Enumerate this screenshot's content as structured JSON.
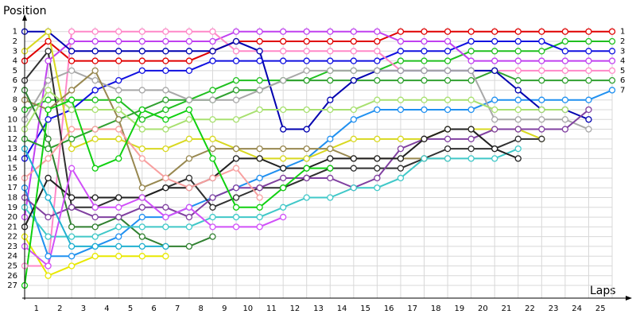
{
  "chart_data": {
    "type": "line",
    "y_label": "Position",
    "x_label": "Laps",
    "x": [
      0,
      1,
      2,
      3,
      4,
      5,
      6,
      7,
      8,
      9,
      10,
      11,
      12,
      13,
      14,
      15,
      16,
      17,
      18,
      19,
      20,
      21,
      22,
      23,
      24,
      25
    ],
    "xlim": [
      0,
      25
    ],
    "ylim": [
      28.3,
      -0.2
    ],
    "xticks": [
      {
        "value": 0.5,
        "label": "1"
      },
      {
        "value": 1.5,
        "label": "2"
      },
      {
        "value": 2.5,
        "label": "3"
      },
      {
        "value": 3.5,
        "label": "4"
      },
      {
        "value": 4.5,
        "label": "5"
      },
      {
        "value": 5.5,
        "label": "6"
      },
      {
        "value": 6.5,
        "label": "7"
      },
      {
        "value": 7.5,
        "label": "8"
      },
      {
        "value": 8.5,
        "label": "9"
      },
      {
        "value": 9.5,
        "label": "10"
      },
      {
        "value": 10.5,
        "label": "11"
      },
      {
        "value": 11.5,
        "label": "12"
      },
      {
        "value": 12.5,
        "label": "13"
      },
      {
        "value": 13.5,
        "label": "14"
      },
      {
        "value": 14.5,
        "label": "15"
      },
      {
        "value": 15.5,
        "label": "16"
      },
      {
        "value": 16.5,
        "label": "17"
      },
      {
        "value": 17.5,
        "label": "18"
      },
      {
        "value": 18.5,
        "label": "19"
      },
      {
        "value": 19.5,
        "label": "20"
      },
      {
        "value": 20.5,
        "label": "21"
      },
      {
        "value": 21.5,
        "label": "22"
      },
      {
        "value": 22.5,
        "label": "23"
      },
      {
        "value": 23.5,
        "label": "24"
      },
      {
        "value": 24.5,
        "label": "25"
      }
    ],
    "yticks": [
      1,
      2,
      3,
      4,
      5,
      6,
      7,
      8,
      9,
      10,
      11,
      12,
      13,
      14,
      15,
      16,
      17,
      18,
      19,
      20,
      21,
      22,
      23,
      24,
      25,
      26,
      27
    ],
    "y2lim": [
      28.3,
      -0.2
    ],
    "y2ticks": [
      1,
      2,
      3,
      4,
      5,
      6,
      7
    ],
    "grid": true,
    "series": [
      {
        "color": "#e00000",
        "values": [
          4,
          2,
          4,
          4,
          4,
          4,
          4,
          4,
          3,
          2,
          2,
          2,
          2,
          2,
          2,
          2,
          1,
          1,
          1,
          1,
          1,
          1,
          1,
          1,
          1,
          1
        ]
      },
      {
        "color": "#20c020",
        "values": [
          9,
          8,
          8,
          8,
          8,
          10,
          9,
          8,
          7,
          6,
          6,
          6,
          6,
          5,
          5,
          5,
          4,
          4,
          4,
          3,
          3,
          3,
          3,
          2,
          2,
          2
        ]
      },
      {
        "color": "#1010e0",
        "values": [
          14,
          10,
          9,
          7,
          6,
          5,
          5,
          5,
          4,
          4,
          4,
          4,
          4,
          4,
          4,
          4,
          3,
          3,
          3,
          2,
          2,
          2,
          2,
          3,
          3,
          3
        ]
      },
      {
        "color": "#c040f0",
        "values": [
          20,
          4,
          2,
          2,
          2,
          2,
          2,
          2,
          2,
          1,
          1,
          1,
          1,
          1,
          1,
          1,
          2,
          2,
          2,
          4,
          4,
          4,
          4,
          4,
          4,
          4
        ]
      },
      {
        "color": "#ff88c8",
        "values": [
          25,
          25,
          1,
          1,
          1,
          1,
          1,
          1,
          1,
          3,
          3,
          3,
          3,
          3,
          3,
          3,
          5,
          5,
          5,
          5,
          5,
          5,
          5,
          5,
          5,
          5
        ]
      },
      {
        "color": "#30a030",
        "values": [
          12,
          13,
          12,
          11,
          10,
          9,
          8,
          8,
          8,
          7,
          7,
          6,
          6,
          6,
          6,
          6,
          6,
          6,
          6,
          6,
          5,
          6,
          6,
          6,
          6,
          6
        ]
      },
      {
        "color": "#2090f0",
        "values": [
          17,
          24,
          24,
          23,
          22,
          20,
          20,
          19,
          18,
          17,
          16,
          15,
          14,
          12,
          10,
          9,
          9,
          9,
          9,
          9,
          8,
          8,
          8,
          8,
          8,
          7
        ]
      },
      {
        "color": "#0000b0",
        "values": [
          1,
          1,
          3,
          3,
          3,
          3,
          3,
          3,
          3,
          2,
          3,
          11,
          11,
          8,
          6,
          5,
          5,
          5,
          5,
          5,
          5,
          7,
          9,
          9,
          10,
          null
        ]
      },
      {
        "color": "#a8a8a8",
        "values": [
          10,
          6,
          5,
          6,
          7,
          7,
          7,
          8,
          8,
          8,
          7,
          6,
          5,
          5,
          5,
          5,
          5,
          5,
          5,
          5,
          10,
          10,
          10,
          10,
          11,
          null
        ]
      },
      {
        "color": "#e8e800",
        "values": [
          22,
          26,
          25,
          24,
          24,
          24,
          24,
          null,
          null,
          null,
          null,
          null,
          null,
          null,
          null,
          null,
          null,
          null,
          null,
          null,
          null,
          null,
          null,
          null,
          null,
          null
        ]
      },
      {
        "color": "#d8d820",
        "values": [
          3,
          1,
          13,
          12,
          12,
          13,
          13,
          12,
          12,
          13,
          14,
          14,
          14,
          13,
          12,
          12,
          12,
          12,
          11,
          11,
          11,
          11,
          12,
          null,
          null,
          null
        ]
      },
      {
        "color": "#303030",
        "values": [
          6,
          3,
          19,
          19,
          18,
          18,
          17,
          16,
          19,
          18,
          17,
          17,
          16,
          15,
          15,
          15,
          15,
          14,
          13,
          13,
          13,
          12,
          12,
          null,
          null,
          null
        ]
      },
      {
        "color": "#988850",
        "values": [
          8,
          9,
          7,
          5,
          10,
          17,
          16,
          14,
          13,
          13,
          13,
          13,
          13,
          13,
          14,
          14,
          14,
          14,
          14,
          null,
          null,
          null,
          null,
          null,
          null,
          null
        ]
      },
      {
        "color": "#308030",
        "values": [
          7,
          12,
          21,
          21,
          20,
          22,
          23,
          23,
          22,
          null,
          null,
          null,
          null,
          null,
          null,
          null,
          null,
          null,
          null,
          null,
          null,
          null,
          null,
          null,
          null,
          null
        ]
      },
      {
        "color": "#8040a0",
        "values": [
          18,
          20,
          19,
          20,
          20,
          19,
          19,
          20,
          18,
          17,
          17,
          16,
          16,
          16,
          17,
          16,
          13,
          12,
          12,
          12,
          11,
          11,
          11,
          11,
          9,
          null
        ]
      },
      {
        "color": "#40c8c8",
        "values": [
          19,
          22,
          22,
          22,
          21,
          21,
          21,
          21,
          20,
          20,
          20,
          19,
          18,
          18,
          17,
          17,
          16,
          14,
          14,
          14,
          14,
          13,
          null,
          null,
          null,
          null
        ]
      },
      {
        "color": "#a8e070",
        "values": [
          11,
          7,
          9,
          9,
          9,
          11,
          11,
          10,
          10,
          10,
          9,
          9,
          9,
          9,
          9,
          8,
          8,
          8,
          8,
          8,
          9,
          9,
          9,
          9,
          null,
          null
        ]
      },
      {
        "color": "#202020",
        "values": [
          21,
          16,
          18,
          18,
          18,
          18,
          17,
          17,
          16,
          14,
          14,
          15,
          15,
          14,
          14,
          14,
          14,
          12,
          11,
          11,
          13,
          14,
          null,
          null,
          null,
          null
        ]
      },
      {
        "color": "#d050f8",
        "values": [
          23,
          25,
          15,
          19,
          19,
          18,
          20,
          19,
          21,
          21,
          21,
          20,
          null,
          null,
          null,
          null,
          null,
          null,
          null,
          null,
          null,
          null,
          null,
          null,
          null,
          null
        ]
      },
      {
        "color": "#f8a0a0",
        "values": [
          16,
          14,
          11,
          11,
          11,
          14,
          16,
          17,
          16,
          15,
          18,
          null,
          null,
          null,
          null,
          null,
          null,
          null,
          null,
          null,
          null,
          null,
          null,
          null,
          null,
          null
        ]
      },
      {
        "color": "#20b0d0",
        "values": [
          13,
          18,
          23,
          23,
          23,
          23,
          23,
          null,
          null,
          null,
          null,
          null,
          null,
          null,
          null,
          null,
          null,
          null,
          null,
          null,
          null,
          null,
          null,
          null,
          null,
          null
        ]
      },
      {
        "color": "#10d010",
        "values": [
          27,
          9,
          8,
          15,
          14,
          9,
          10,
          9,
          14,
          19,
          19,
          17,
          15,
          15,
          null,
          null,
          null,
          null,
          null,
          null,
          null,
          null,
          null,
          null,
          null,
          null
        ]
      }
    ]
  }
}
